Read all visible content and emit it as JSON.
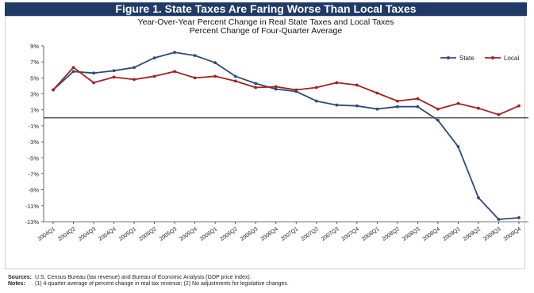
{
  "chart_data": {
    "type": "line",
    "title": "Figure 1. State Taxes Are Faring Worse Than Local Taxes",
    "subtitle_lines": [
      "Year-Over-Year Percent Change in Real State Taxes and Local Taxes",
      "Percent Change of Four-Quarter Average"
    ],
    "xlabel": "",
    "ylabel": "",
    "categories": [
      "2004Q1",
      "2004Q2",
      "2004Q3",
      "2004Q4",
      "2005Q1",
      "2005Q2",
      "2005Q3",
      "2005Q4",
      "2006Q1",
      "2006Q2",
      "2006Q3",
      "2006Q4",
      "2007Q1",
      "2007Q2",
      "2007Q3",
      "2007Q4",
      "2008Q1",
      "2008Q2",
      "2008Q3",
      "2008Q4",
      "2009Q1",
      "2009Q2",
      "2009Q3",
      "2009Q4"
    ],
    "y_ticks": [
      "9%",
      "7%",
      "5%",
      "3%",
      "1%",
      "-1%",
      "-3%",
      "-5%",
      "-7%",
      "-9%",
      "-11%",
      "-13%"
    ],
    "ylim": [
      -13,
      9
    ],
    "zero_line": true,
    "grid": false,
    "legend_position": "top-right",
    "series": [
      {
        "name": "State",
        "color": "#2f4a7a",
        "values": [
          3.5,
          5.8,
          5.6,
          5.9,
          6.3,
          7.5,
          8.2,
          7.8,
          6.9,
          5.2,
          4.3,
          3.6,
          3.3,
          2.1,
          1.6,
          1.5,
          1.1,
          1.4,
          1.4,
          -0.3,
          -3.6,
          -10.0,
          -12.7,
          -12.5
        ]
      },
      {
        "name": "Local",
        "color": "#a32020",
        "values": [
          3.5,
          6.3,
          4.4,
          5.1,
          4.8,
          5.2,
          5.8,
          5.0,
          5.2,
          4.6,
          3.8,
          3.9,
          3.5,
          3.8,
          4.4,
          4.1,
          3.1,
          2.1,
          2.4,
          1.1,
          1.8,
          1.2,
          0.4,
          1.5
        ]
      }
    ]
  },
  "notes": {
    "sources_label": "Sources:",
    "sources_text": "U.S. Census Bureau (tax revenue) and Bureau of Economic Analysis (GDP price index).",
    "notes_label": "Notes:",
    "notes_text": "(1) 4-quarter average of percent change in real tax revenue; (2) No adjustments for legislative changes."
  }
}
